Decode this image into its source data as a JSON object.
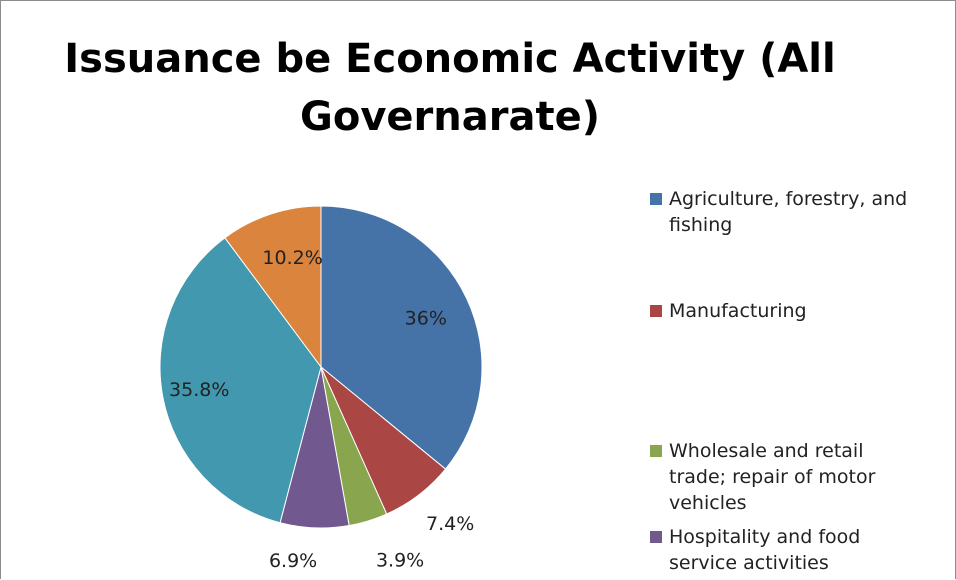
{
  "chart_data": {
    "type": "pie",
    "title": "Issuance be Economic Activity (All Governarate)",
    "slices": [
      {
        "name": "Agriculture, forestry, and fishing",
        "value": 36,
        "label": "36%",
        "color": "#4572A7"
      },
      {
        "name": "Manufacturing",
        "value": 7.4,
        "label": "7.4%",
        "color": "#AA4643"
      },
      {
        "name": "Wholesale and retail trade; repair of motor vehicles",
        "value": 3.9,
        "label": "3.9%",
        "color": "#89A54E"
      },
      {
        "name": "Hospitality and food service activities",
        "value": 6.9,
        "label": "6.9%",
        "color": "#71588F"
      },
      {
        "name": "",
        "value": 35.8,
        "label": "35.8%",
        "color": "#4198AF"
      },
      {
        "name": "",
        "value": 10.2,
        "label": "10.2%",
        "color": "#DB843D"
      }
    ],
    "legend": {
      "placement": "right",
      "entries": [
        "Agriculture, forestry, and fishing",
        "Manufacturing",
        "Wholesale and retail trade; repair of motor vehicles",
        "Hospitality and food service activities"
      ]
    }
  }
}
